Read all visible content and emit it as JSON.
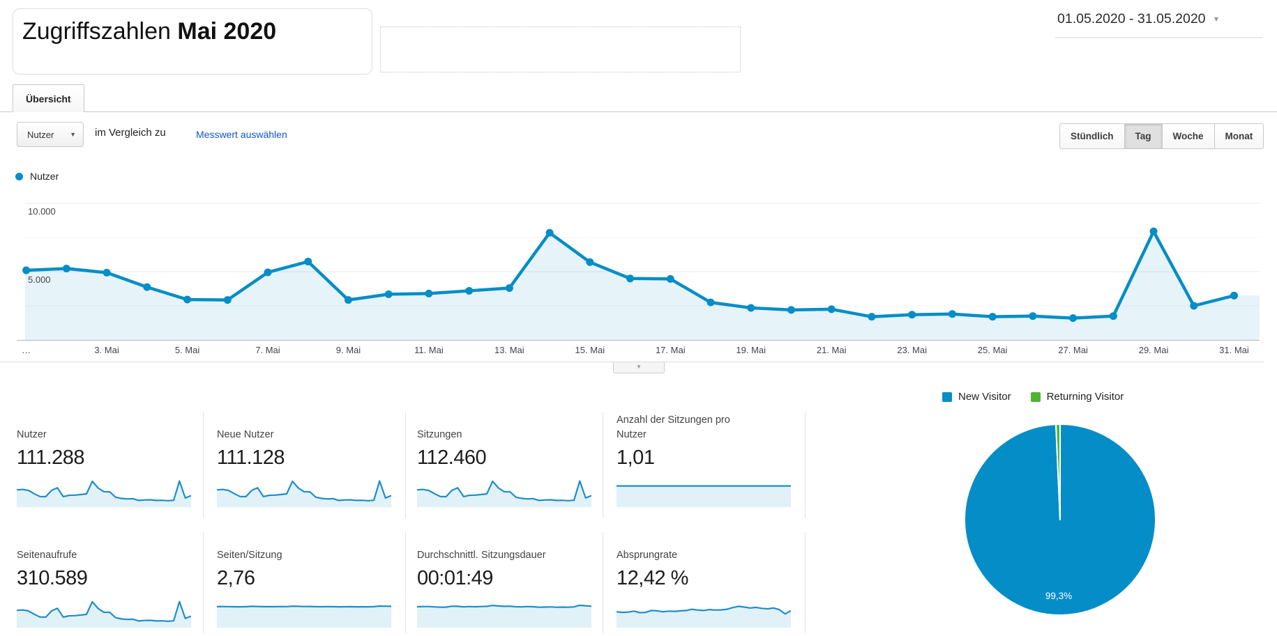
{
  "colors": {
    "accent_blue": "#058dc7",
    "accent_green": "#50b432",
    "link_blue": "#1155cc"
  },
  "header": {
    "title_regular": "Zugriffszahlen ",
    "title_bold": "Mai 2020",
    "date_range": "01.05.2020 - 31.05.2020"
  },
  "tabs": {
    "overview": "Übersicht"
  },
  "controls": {
    "metric_selector": "Nutzer",
    "compare_text": "im Vergleich zu",
    "select_metric_link": "Messwert auswählen",
    "granularity": [
      {
        "label": "Stündlich",
        "selected": false
      },
      {
        "label": "Tag",
        "selected": true
      },
      {
        "label": "Woche",
        "selected": false
      },
      {
        "label": "Monat",
        "selected": false
      }
    ]
  },
  "legend": {
    "series": "Nutzer"
  },
  "chart_data": [
    {
      "id": "users-per-day",
      "type": "line",
      "series_name": "Nutzer",
      "x_unit": "day of May 2020, days 1-31",
      "values": [
        5100,
        5230,
        4930,
        3870,
        2960,
        2930,
        4950,
        5740,
        2930,
        3350,
        3400,
        3600,
        3800,
        7850,
        5700,
        4500,
        4470,
        2750,
        2350,
        2200,
        2250,
        1700,
        1850,
        1900,
        1700,
        1750,
        1600,
        1750,
        7950,
        2500,
        3250
      ],
      "xticks": [
        {
          "day": 1,
          "label": "…"
        },
        {
          "day": 3,
          "label": "3. Mai"
        },
        {
          "day": 5,
          "label": "5. Mai"
        },
        {
          "day": 7,
          "label": "7. Mai"
        },
        {
          "day": 9,
          "label": "9. Mai"
        },
        {
          "day": 11,
          "label": "11. Mai"
        },
        {
          "day": 13,
          "label": "13. Mai"
        },
        {
          "day": 15,
          "label": "15. Mai"
        },
        {
          "day": 17,
          "label": "17. Mai"
        },
        {
          "day": 19,
          "label": "19. Mai"
        },
        {
          "day": 21,
          "label": "21. Mai"
        },
        {
          "day": 23,
          "label": "23. Mai"
        },
        {
          "day": 25,
          "label": "25. Mai"
        },
        {
          "day": 27,
          "label": "27. Mai"
        },
        {
          "day": 29,
          "label": "29. Mai"
        },
        {
          "day": 31,
          "label": "31. Mai"
        }
      ],
      "yticks": [
        {
          "value": 10000,
          "label": "10.000"
        },
        {
          "value": 5000,
          "label": "5.000"
        }
      ],
      "gridlines": {
        "major": [
          10000,
          5000
        ],
        "minor": [
          7500,
          2500
        ]
      },
      "ylim": [
        0,
        10000
      ],
      "line_color": "#058dc7",
      "fill_color": "rgba(5,141,199,0.10)"
    },
    {
      "id": "visitor-type",
      "type": "pie",
      "legend": [
        "New Visitor",
        "Returning Visitor"
      ],
      "values": [
        99.3,
        0.7
      ],
      "colors": [
        "#058dc7",
        "#50b432"
      ],
      "slice_label": "99,3%",
      "legend_position": "top"
    }
  ],
  "cards": [
    {
      "label": "Nutzer",
      "value": "111.288",
      "spark": {
        "source": "users-per-day",
        "ymin": 0,
        "ymax": 8500
      }
    },
    {
      "label": "Neue Nutzer",
      "value": "111.128",
      "spark": {
        "source": "users-per-day",
        "ymin": 0,
        "ymax": 8500
      }
    },
    {
      "label": "Sitzungen",
      "value": "112.460",
      "spark": {
        "source": "users-per-day",
        "ymin": 0,
        "ymax": 8500
      }
    },
    {
      "label": "Anzahl der Sitzungen pro Nutzer",
      "value": "1,01",
      "spark": {
        "ymin": 0,
        "ymax": 1.35,
        "values": [
          1.01,
          1.01,
          1.01,
          1.01,
          1.01,
          1.01,
          1.01,
          1.01,
          1.01,
          1.01,
          1.01,
          1.01,
          1.01,
          1.01,
          1.01,
          1.01,
          1.01,
          1.01,
          1.01,
          1.01,
          1.01,
          1.01,
          1.01,
          1.01,
          1.01,
          1.01,
          1.01,
          1.01,
          1.01,
          1.01,
          1.01
        ]
      }
    },
    {
      "label": "Seitenaufrufe",
      "value": "310.589",
      "spark": {
        "source": "users-per-day",
        "ymin": 0,
        "ymax": 8500
      }
    },
    {
      "label": "Seiten/Sitzung",
      "value": "2,76",
      "spark": {
        "ymin": 0,
        "ymax": 3.7,
        "values": [
          2.74,
          2.76,
          2.75,
          2.73,
          2.72,
          2.74,
          2.78,
          2.77,
          2.74,
          2.75,
          2.74,
          2.76,
          2.75,
          2.8,
          2.78,
          2.76,
          2.77,
          2.74,
          2.73,
          2.75,
          2.74,
          2.72,
          2.73,
          2.74,
          2.72,
          2.73,
          2.72,
          2.74,
          2.82,
          2.8,
          2.78
        ]
      }
    },
    {
      "label": "Durchschnittl. Sitzungsdauer",
      "value": "00:01:49",
      "spark": {
        "ymin": 0,
        "ymax": 145,
        "values": [
          107,
          108,
          108,
          106,
          104,
          105,
          110,
          109,
          106,
          108,
          107,
          108,
          109,
          114,
          111,
          109,
          110,
          107,
          106,
          108,
          107,
          104,
          105,
          106,
          104,
          105,
          104,
          106,
          115,
          112,
          110
        ]
      }
    },
    {
      "label": "Absprungrate",
      "value": "12,42 %",
      "spark": {
        "ymin": 0,
        "ymax": 21,
        "values": [
          11.5,
          11,
          11.2,
          12,
          10.8,
          11,
          12.5,
          12.2,
          11.5,
          12,
          11.8,
          12.2,
          12.5,
          13.5,
          12.8,
          12.5,
          13.2,
          12.8,
          13,
          13.5,
          14.8,
          15.8,
          15.2,
          14.5,
          15,
          14.2,
          13.8,
          14.5,
          13.2,
          9.8,
          12.3
        ]
      }
    }
  ],
  "misc": {
    "collapse_caret": "▼",
    "dropdown_caret": "▼"
  }
}
